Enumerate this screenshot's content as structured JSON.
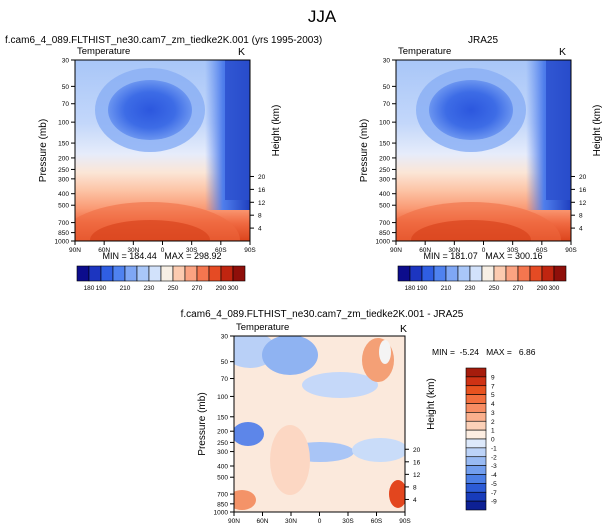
{
  "page_title": "JJA",
  "chart_data": [
    {
      "type": "heatmap",
      "title": "f.cam6_4_089.FLTHIST_ne30.cam7_zm_tiedke2K.001 (yrs 1995-2003)",
      "left_label": "Temperature",
      "right_label": "K",
      "xlabel": "",
      "ylabel": "Pressure (mb)",
      "ylabel_right": "Height (km)",
      "x_ticks": [
        "90N",
        "60N",
        "30N",
        "0",
        "30S",
        "60S",
        "90S"
      ],
      "y_ticks": [
        30,
        50,
        70,
        100,
        150,
        200,
        250,
        300,
        400,
        500,
        700,
        850,
        1000
      ],
      "y_ticks_right": [
        20,
        16,
        12,
        8,
        4
      ],
      "ylim": [
        1000,
        30
      ],
      "stats": "MIN = 184.44   MAX = 298.92",
      "colorbar_levels": [
        "180",
        "190",
        "200",
        "210",
        "220",
        "230",
        "240",
        "250",
        "260",
        "270",
        "280",
        "290",
        "300"
      ],
      "colorbar_labels": [
        "180",
        "190",
        "210",
        "230",
        "250",
        "270",
        "290",
        "300"
      ],
      "colorbar_colors": [
        "#0c0c8c",
        "#1c35c0",
        "#2f5ee3",
        "#4f82f0",
        "#7fa7f5",
        "#a9c7f9",
        "#d2e2fb",
        "#f7efe5",
        "#fccbb0",
        "#fba382",
        "#f4764f",
        "#e54b24",
        "#c02510",
        "#8f0f0a"
      ]
    },
    {
      "type": "heatmap",
      "title": "JRA25",
      "left_label": "Temperature",
      "right_label": "K",
      "xlabel": "",
      "ylabel": "Pressure (mb)",
      "ylabel_right": "Height (km)",
      "x_ticks": [
        "90N",
        "60N",
        "30N",
        "0",
        "30S",
        "60S",
        "90S"
      ],
      "y_ticks": [
        30,
        50,
        70,
        100,
        150,
        200,
        250,
        300,
        400,
        500,
        700,
        850,
        1000
      ],
      "y_ticks_right": [
        20,
        16,
        12,
        8,
        4
      ],
      "ylim": [
        1000,
        30
      ],
      "stats": "MIN = 181.07   MAX = 300.16",
      "colorbar_levels": [
        "180",
        "190",
        "200",
        "210",
        "220",
        "230",
        "240",
        "250",
        "260",
        "270",
        "280",
        "290",
        "300"
      ],
      "colorbar_labels": [
        "180",
        "190",
        "210",
        "230",
        "250",
        "270",
        "290",
        "300"
      ],
      "colorbar_colors": [
        "#0c0c8c",
        "#1c35c0",
        "#2f5ee3",
        "#4f82f0",
        "#7fa7f5",
        "#a9c7f9",
        "#d2e2fb",
        "#f7efe5",
        "#fccbb0",
        "#fba382",
        "#f4764f",
        "#e54b24",
        "#c02510",
        "#8f0f0a"
      ]
    },
    {
      "type": "heatmap",
      "title": "f.cam6_4_089.FLTHIST_ne30.cam7_zm_tiedke2K.001 - JRA25",
      "left_label": "Temperature",
      "right_label": "K",
      "xlabel": "",
      "ylabel": "Pressure (mb)",
      "ylabel_right": "Height (km)",
      "x_ticks": [
        "90N",
        "60N",
        "30N",
        "0",
        "30S",
        "60S",
        "90S"
      ],
      "y_ticks": [
        30,
        50,
        70,
        100,
        150,
        200,
        250,
        300,
        400,
        500,
        700,
        850,
        1000
      ],
      "y_ticks_right": [
        20,
        16,
        12,
        8,
        4
      ],
      "ylim": [
        1000,
        30
      ],
      "stats": "MIN =  -5.24   MAX =   6.86",
      "colorbar_labels": [
        "9",
        "7",
        "5",
        "4",
        "3",
        "2",
        "1",
        "0",
        "-1",
        "-2",
        "-3",
        "-4",
        "-5",
        "-7",
        "-9"
      ],
      "colorbar_colors": [
        "#a61c0c",
        "#cf3214",
        "#e8521f",
        "#f36f3e",
        "#f78d63",
        "#fab08d",
        "#fcd1b8",
        "#fdeee2",
        "#dde9fb",
        "#bcd3f8",
        "#98baf3",
        "#729eee",
        "#4c7fe6",
        "#2c5bd6",
        "#183cbb",
        "#0d2094"
      ]
    }
  ]
}
